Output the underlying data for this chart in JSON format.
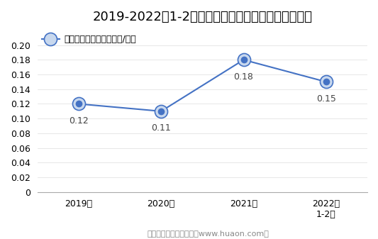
{
  "title": "2019-2022年1-2月郑州商品交易所棉花期权成交均价",
  "legend_label": "棉花期权成交均价（万元/手）",
  "x_labels": [
    "2019年",
    "2020年",
    "2021年",
    "2022年\n1-2月"
  ],
  "x_values": [
    0,
    1,
    2,
    3
  ],
  "y_values": [
    0.12,
    0.11,
    0.18,
    0.15
  ],
  "data_labels": [
    "0.12",
    "0.11",
    "0.18",
    "0.15"
  ],
  "label_offsets": [
    0.0,
    0.0,
    0.0,
    0.0
  ],
  "ylim": [
    0,
    0.22
  ],
  "yticks": [
    0,
    0.02,
    0.04,
    0.06,
    0.08,
    0.1,
    0.12,
    0.14,
    0.16,
    0.18,
    0.2
  ],
  "line_color": "#4472c4",
  "footer": "制图：华经产业研究院（www.huaon.com）",
  "title_fontsize": 13,
  "label_fontsize": 9,
  "tick_fontsize": 9,
  "legend_fontsize": 9,
  "footer_fontsize": 8,
  "bg_color": "#ffffff"
}
